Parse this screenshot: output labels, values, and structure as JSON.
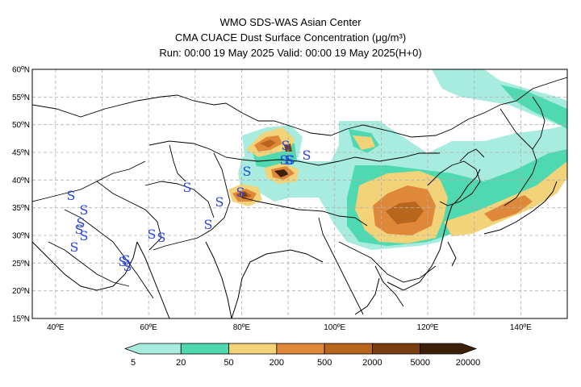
{
  "header": {
    "line1": "WMO SDS-WAS Asian Center",
    "line2": "CMA CUACE Dust Surface Concentration (μg/m³)",
    "line3": "Run: 00:00 19 May 2025    Valid: 00:00 19 May 2025(H+0)"
  },
  "axes": {
    "lat_labels": [
      "60ºN",
      "55ºN",
      "50ºN",
      "45ºN",
      "40ºN",
      "35ºN",
      "30ºN",
      "25ºN",
      "20ºN",
      "15ºN"
    ],
    "lon_labels": [
      "40ºE",
      "60ºE",
      "80ºE",
      "100ºE",
      "120ºE",
      "140ºE"
    ],
    "lat_range": [
      15,
      60
    ],
    "lon_range": [
      35,
      150
    ],
    "grid": true
  },
  "colorbar": {
    "labels": [
      "5",
      "20",
      "50",
      "200",
      "500",
      "2000",
      "5000",
      "20000"
    ],
    "colors": [
      "#a8ece0",
      "#4fd9b0",
      "#f2d37a",
      "#e0883a",
      "#b8651e",
      "#7a3d10",
      "#3d2008"
    ]
  },
  "storm_symbol": "S",
  "colors": {
    "light_dust": "#a8ece0",
    "moderate_dust": "#4fd9b0",
    "heavy_dust": "#f2d37a",
    "severe_dust": "#e0883a",
    "storm_marker": "#2a44d8",
    "grid": "#b0b0b0",
    "border": "#000000"
  }
}
